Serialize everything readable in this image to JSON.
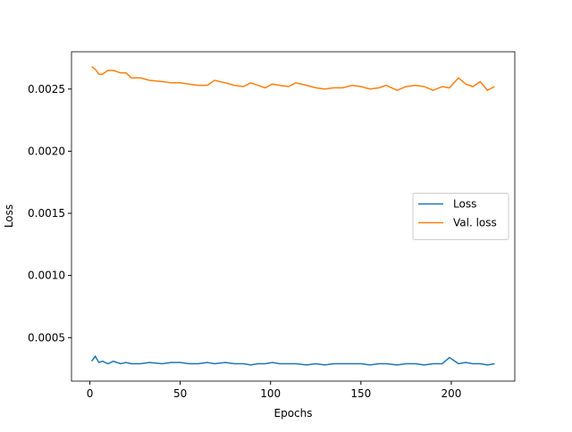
{
  "chart_data": {
    "type": "line",
    "xlabel": "Epochs",
    "ylabel": "Loss",
    "x": [
      1,
      3,
      5,
      7,
      10,
      13,
      17,
      20,
      23,
      28,
      33,
      40,
      45,
      50,
      55,
      60,
      65,
      69,
      75,
      80,
      85,
      89,
      93,
      97,
      101,
      105,
      110,
      114,
      120,
      125,
      130,
      135,
      140,
      145,
      150,
      155,
      160,
      164,
      170,
      175,
      180,
      185,
      190,
      195,
      199,
      204,
      208,
      212,
      216,
      220,
      224
    ],
    "series": [
      {
        "name": "Loss",
        "color": "#1f77b4",
        "values": [
          0.00031,
          0.00035,
          0.0003,
          0.00031,
          0.00029,
          0.00031,
          0.00029,
          0.0003,
          0.00029,
          0.00029,
          0.0003,
          0.00029,
          0.0003,
          0.0003,
          0.00029,
          0.00029,
          0.0003,
          0.00029,
          0.0003,
          0.00029,
          0.00029,
          0.00028,
          0.00029,
          0.00029,
          0.0003,
          0.00029,
          0.00029,
          0.00029,
          0.00028,
          0.00029,
          0.00028,
          0.00029,
          0.00029,
          0.00029,
          0.00029,
          0.00028,
          0.00029,
          0.00029,
          0.00028,
          0.00029,
          0.00029,
          0.00028,
          0.00029,
          0.00029,
          0.00034,
          0.00029,
          0.0003,
          0.00029,
          0.00029,
          0.00028,
          0.00029
        ]
      },
      {
        "name": "Val. loss",
        "color": "#ff7f0e",
        "values": [
          0.00268,
          0.00266,
          0.00262,
          0.00262,
          0.00265,
          0.00265,
          0.00263,
          0.00263,
          0.00259,
          0.00259,
          0.00257,
          0.00256,
          0.00255,
          0.00255,
          0.00254,
          0.00253,
          0.00253,
          0.00257,
          0.00255,
          0.00253,
          0.00252,
          0.00255,
          0.00253,
          0.00251,
          0.00254,
          0.00253,
          0.00252,
          0.00255,
          0.00253,
          0.00251,
          0.0025,
          0.00251,
          0.00251,
          0.00253,
          0.00252,
          0.0025,
          0.00251,
          0.00253,
          0.00249,
          0.00252,
          0.00253,
          0.00252,
          0.00249,
          0.00252,
          0.00251,
          0.00259,
          0.00254,
          0.00252,
          0.00256,
          0.00249,
          0.00252
        ]
      }
    ],
    "xlim": [
      -10.15,
      235.15
    ],
    "xticks": [
      0,
      50,
      100,
      150,
      200
    ],
    "ylim": [
      0.00015,
      0.0028
    ],
    "yticks": [
      0.0005,
      {
        "value": 0.001,
        "label": "0.0010"
      },
      0.0015,
      {
        "value": 0.002,
        "label": "0.0020"
      },
      0.0025
    ],
    "legend": "center right"
  }
}
